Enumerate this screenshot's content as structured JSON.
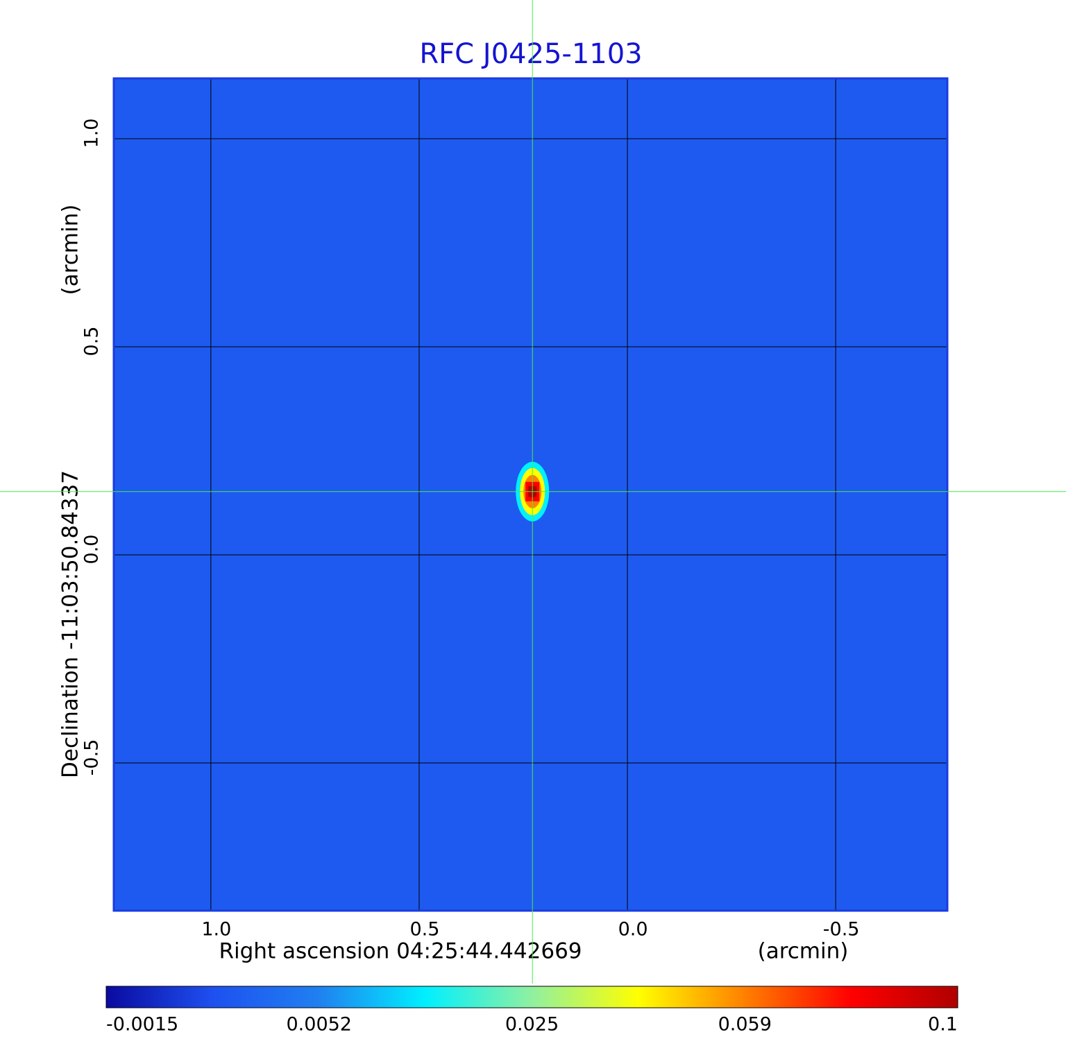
{
  "chart_data": {
    "type": "image",
    "title": "RFC J0425-1103",
    "title_color": "#1414d2",
    "x_label": "Right ascension  04:25:44.442669",
    "x_unit": "(arcmin)",
    "y_label": "Declination  -11:03:50.84337",
    "y_unit": "(arcmin)",
    "xlim": [
      1.233,
      -0.768
    ],
    "ylim": [
      -0.855,
      1.145
    ],
    "xticks": [
      {
        "value": 1,
        "label": "1.0"
      },
      0.5,
      {
        "value": 0,
        "label": "0.0"
      },
      -0.5
    ],
    "yticks": [
      {
        "value": 1,
        "label": "1.0"
      },
      0.5,
      {
        "value": 0,
        "label": "0.0"
      },
      -0.5
    ],
    "grid": true,
    "grid_color": "#000000",
    "background_color": "#1e5af0",
    "border_color": "#1a3be0",
    "crosshair": {
      "x": 0.228,
      "y": 0.152,
      "color": "#44ee44"
    },
    "colormap": [
      "#0a0aa0",
      "#1e50f0",
      "#2080f0",
      "#00f0ff",
      "#90f0a0",
      "#ffff00",
      "#ff8000",
      "#ff0000",
      "#b00000"
    ],
    "colorbar_ticks": [
      -0.0015,
      0.0052,
      0.025,
      0.059,
      0.1
    ]
  }
}
